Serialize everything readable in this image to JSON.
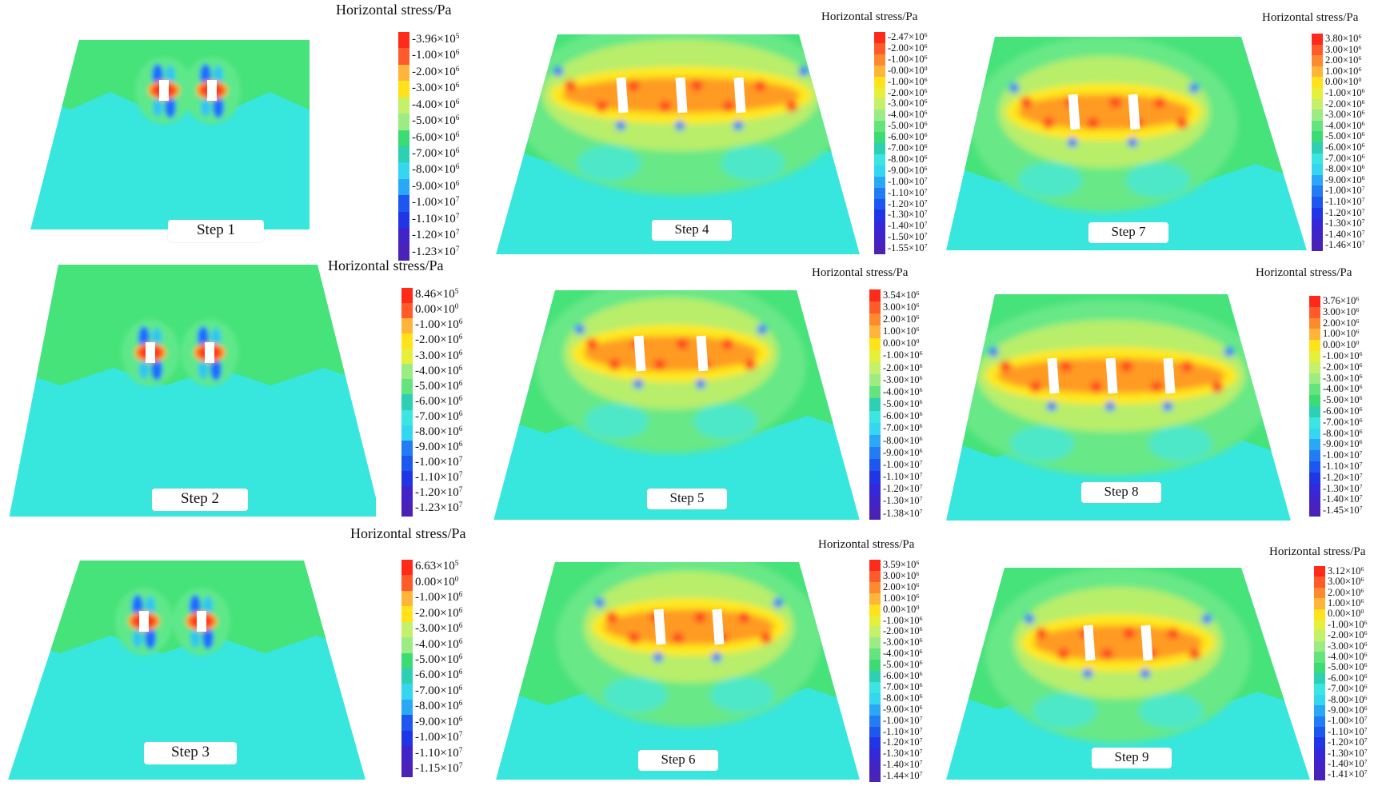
{
  "colors": {
    "region_upper": "#46e27a",
    "region_lower": "#37e6dd",
    "hot_red": "#ff3b24",
    "hot_orange": "#ff9b22",
    "hot_yellow": "#ffe81a",
    "cold_blue": "#1b6cff",
    "pillar": "#ffffff"
  },
  "panels": [
    {
      "id": "1",
      "title": "Horizontal stress/Pa",
      "step": "Step 1",
      "pillars": 2,
      "stage": "early",
      "legend": [
        "-3.96×10^5",
        "-1.00×10^6",
        "-2.00×10^6",
        "-3.00×10^6",
        "-4.00×10^6",
        "-5.00×10^6",
        "-6.00×10^6",
        "-7.00×10^6",
        "-8.00×10^6",
        "-9.00×10^6",
        "-1.00×10^7",
        "-1.10×10^7",
        "-1.20×10^7",
        "-1.23×10^7"
      ]
    },
    {
      "id": "2",
      "title": "Horizontal stress/Pa",
      "step": "Step 2",
      "pillars": 2,
      "stage": "early",
      "legend": [
        "8.46×10^5",
        "0.00×10^0",
        "-1.00×10^6",
        "-2.00×10^6",
        "-3.00×10^6",
        "-4.00×10^6",
        "-5.00×10^6",
        "-6.00×10^6",
        "-7.00×10^6",
        "-8.00×10^6",
        "-9.00×10^6",
        "-1.00×10^7",
        "-1.10×10^7",
        "-1.20×10^7",
        "-1.23×10^7"
      ]
    },
    {
      "id": "3",
      "title": "Horizontal stress/Pa",
      "step": "Step 3",
      "pillars": 2,
      "stage": "early",
      "legend": [
        "6.63×10^5",
        "0.00×10^0",
        "-1.00×10^6",
        "-2.00×10^6",
        "-3.00×10^6",
        "-4.00×10^6",
        "-5.00×10^6",
        "-6.00×10^6",
        "-7.00×10^6",
        "-8.00×10^6",
        "-9.00×10^6",
        "-1.00×10^7",
        "-1.10×10^7",
        "-1.15×10^7"
      ]
    },
    {
      "id": "4",
      "title": "Horizontal stress/Pa",
      "step": "Step 4",
      "pillars": 3,
      "stage": "mid",
      "legend": [
        "-2.47×10^6",
        "-2.00×10^6",
        "-1.00×10^6",
        "-0.00×10^0",
        "-1.00×10^6",
        "-2.00×10^6",
        "-3.00×10^6",
        "-4.00×10^6",
        "-5.00×10^6",
        "-6.00×10^6",
        "-7.00×10^6",
        "-8.00×10^6",
        "-9.00×10^6",
        "-1.00×10^7",
        "-1.10×10^7",
        "-1.20×10^7",
        "-1.30×10^7",
        "-1.40×10^7",
        "-1.50×10^7",
        "-1.55×10^7"
      ]
    },
    {
      "id": "5",
      "title": "Horizontal stress/Pa",
      "step": "Step 5",
      "pillars": 2,
      "stage": "late",
      "legend": [
        "3.54×10^6",
        "3.00×10^6",
        "2.00×10^6",
        "1.00×10^6",
        "0.00×10^0",
        "-1.00×10^6",
        "-2.00×10^6",
        "-3.00×10^6",
        "-4.00×10^6",
        "-5.00×10^6",
        "-6.00×10^6",
        "-7.00×10^6",
        "-8.00×10^6",
        "-9.00×10^6",
        "-1.00×10^7",
        "-1.10×10^7",
        "-1.20×10^7",
        "-1.30×10^7",
        "-1.38×10^7"
      ]
    },
    {
      "id": "6",
      "title": "Horizontal stress/Pa",
      "step": "Step 6",
      "pillars": 2,
      "stage": "late",
      "legend": [
        "3.59×10^6",
        "3.00×10^6",
        "2.00×10^6",
        "1.00×10^6",
        "0.00×10^0",
        "-1.00×10^6",
        "-2.00×10^6",
        "-3.00×10^6",
        "-4.00×10^6",
        "-5.00×10^6",
        "-6.00×10^6",
        "-7.00×10^6",
        "-8.00×10^6",
        "-9.00×10^6",
        "-1.00×10^7",
        "-1.10×10^7",
        "-1.20×10^7",
        "-1.30×10^7",
        "-1.40×10^7",
        "-1.44×10^7"
      ]
    },
    {
      "id": "7",
      "title": "Horizontal stress/Pa",
      "step": "Step 7",
      "pillars": 2,
      "stage": "late",
      "legend": [
        "3.80×10^6",
        "3.00×10^6",
        "2.00×10^6",
        "1.00×10^6",
        "0.00×10^0",
        "-1.00×10^6",
        "-2.00×10^6",
        "-3.00×10^6",
        "-4.00×10^6",
        "-5.00×10^6",
        "-6.00×10^6",
        "-7.00×10^6",
        "-8.00×10^6",
        "-9.00×10^6",
        "-1.00×10^7",
        "-1.10×10^7",
        "-1.20×10^7",
        "-1.30×10^7",
        "-1.40×10^7",
        "-1.46×10^7"
      ]
    },
    {
      "id": "8",
      "title": "Horizontal stress/Pa",
      "step": "Step 8",
      "pillars": 3,
      "stage": "late",
      "legend": [
        "3.76×10^6",
        "3.00×10^6",
        "2.00×10^6",
        "1.00×10^6",
        "0.00×10^0",
        "-1.00×10^6",
        "-2.00×10^6",
        "-3.00×10^6",
        "-4.00×10^6",
        "-5.00×10^6",
        "-6.00×10^6",
        "-7.00×10^6",
        "-8.00×10^6",
        "-9.00×10^6",
        "-1.00×10^7",
        "-1.10×10^7",
        "-1.20×10^7",
        "-1.30×10^7",
        "-1.40×10^7",
        "-1.45×10^7"
      ]
    },
    {
      "id": "9",
      "title": "Horizontal stress/Pa",
      "step": "Step 9",
      "pillars": 2,
      "stage": "late",
      "legend": [
        "3.12×10^6",
        "3.00×10^6",
        "2.00×10^6",
        "1.00×10^6",
        "0.00×10^0",
        "-1.00×10^6",
        "-2.00×10^6",
        "-3.00×10^6",
        "-4.00×10^6",
        "-5.00×10^6",
        "-6.00×10^6",
        "-7.00×10^6",
        "-8.00×10^6",
        "-9.00×10^6",
        "-1.00×10^7",
        "-1.10×10^7",
        "-1.20×10^7",
        "-1.30×10^7",
        "-1.40×10^7",
        "-1.41×10^7"
      ]
    }
  ]
}
